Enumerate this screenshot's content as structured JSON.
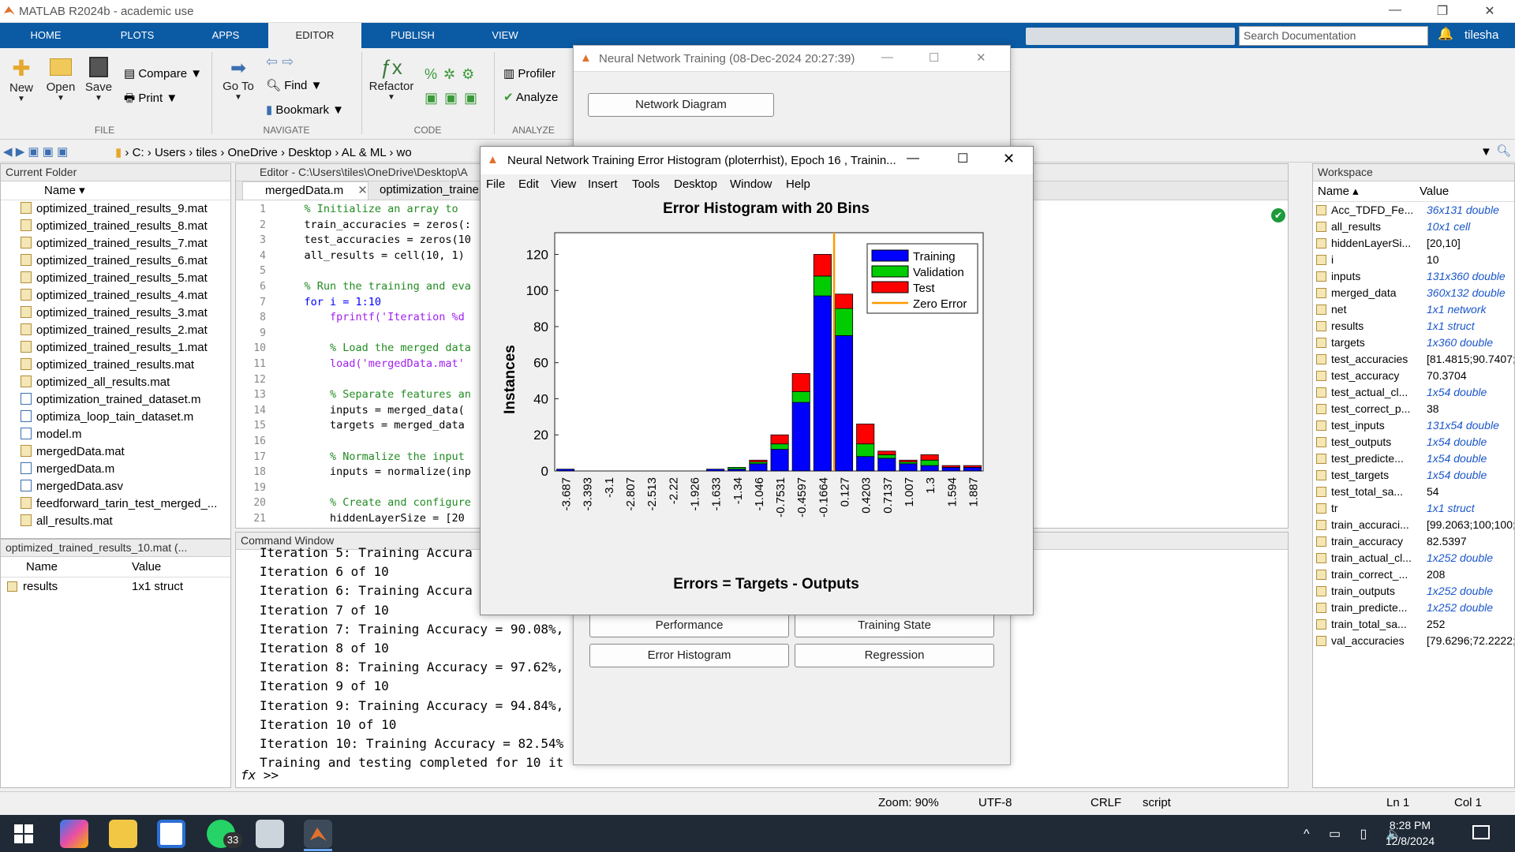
{
  "window_title": "MATLAB R2024b - academic use",
  "ribbon_tabs": [
    "HOME",
    "PLOTS",
    "APPS",
    "EDITOR",
    "PUBLISH",
    "VIEW"
  ],
  "search_placeholder": "Search Documentation",
  "user": "tilesha",
  "ribbon": {
    "new": "New",
    "open": "Open",
    "save": "Save",
    "compare": "Compare",
    "print": "Print",
    "goto": "Go To",
    "find": "Find",
    "bookmark": "Bookmark",
    "refactor": "Refactor",
    "profiler": "Profiler",
    "analyze": "Analyze",
    "groups": [
      "FILE",
      "NAVIGATE",
      "CODE",
      "ANALYZE"
    ]
  },
  "address": [
    "C:",
    "Users",
    "tiles",
    "OneDrive",
    "Desktop",
    "AL & ML",
    "wo"
  ],
  "current_folder": {
    "title": "Current Folder",
    "col_name": "Name",
    "files": [
      "optimized_trained_results_9.mat",
      "optimized_trained_results_8.mat",
      "optimized_trained_results_7.mat",
      "optimized_trained_results_6.mat",
      "optimized_trained_results_5.mat",
      "optimized_trained_results_4.mat",
      "optimized_trained_results_3.mat",
      "optimized_trained_results_2.mat",
      "optimized_trained_results_1.mat",
      "optimized_trained_results.mat",
      "optimized_all_results.mat",
      "optimization_trained_dataset.m",
      "optimiza_loop_tain_dataset.m",
      "model.m",
      "mergedData.mat",
      "mergedData.m",
      "mergedData.asv",
      "feedforward_tarin_test_merged_...",
      "all_results.mat"
    ],
    "details_title": "optimized_trained_results_10.mat  (...",
    "details_cols": [
      "Name",
      "Value"
    ],
    "details_rows": [
      [
        "results",
        "1x1 struct"
      ]
    ]
  },
  "editor": {
    "title": "Editor - C:\\Users\\tiles\\OneDrive\\Desktop\\A",
    "tabs": [
      "mergedData.m",
      "optimization_traine"
    ],
    "lines": [
      {
        "n": "1",
        "t": "    % Initialize an array to",
        "c": "cmt"
      },
      {
        "n": "2",
        "t": "    train_accuracies = zeros(:",
        "c": ""
      },
      {
        "n": "3",
        "t": "    test_accuracies = zeros(10",
        "c": ""
      },
      {
        "n": "4",
        "t": "    all_results = cell(10, 1)",
        "c": ""
      },
      {
        "n": "5",
        "t": "",
        "c": ""
      },
      {
        "n": "6",
        "t": "    % Run the training and eva",
        "c": "cmt"
      },
      {
        "n": "7",
        "t": "    for i = 1:10",
        "c": "kw"
      },
      {
        "n": "8",
        "t": "        fprintf('Iteration %d",
        "c": "str"
      },
      {
        "n": "9",
        "t": "",
        "c": ""
      },
      {
        "n": "10",
        "t": "        % Load the merged data",
        "c": "cmt"
      },
      {
        "n": "11",
        "t": "        load('mergedData.mat'",
        "c": "str"
      },
      {
        "n": "12",
        "t": "",
        "c": ""
      },
      {
        "n": "13",
        "t": "        % Separate features an",
        "c": "cmt"
      },
      {
        "n": "14",
        "t": "        inputs = merged_data(",
        "c": ""
      },
      {
        "n": "15",
        "t": "        targets = merged_data",
        "c": ""
      },
      {
        "n": "16",
        "t": "",
        "c": ""
      },
      {
        "n": "17",
        "t": "        % Normalize the input",
        "c": "cmt"
      },
      {
        "n": "18",
        "t": "        inputs = normalize(inp",
        "c": ""
      },
      {
        "n": "19",
        "t": "",
        "c": ""
      },
      {
        "n": "20",
        "t": "        % Create and configure",
        "c": "cmt"
      },
      {
        "n": "21",
        "t": "        hiddenLayerSize = [20",
        "c": ""
      }
    ]
  },
  "command_window": {
    "title": "Command Window",
    "lines": [
      "Iteration 5: Training Accura",
      "Iteration 6 of 10",
      "Iteration 6: Training Accura",
      "Iteration 7 of 10",
      "Iteration 7: Training Accuracy = 90.08%,",
      "Iteration 8 of 10",
      "Iteration 8: Training Accuracy = 97.62%,",
      "Iteration 9 of 10",
      "Iteration 9: Training Accuracy = 94.84%,",
      "Iteration 10 of 10",
      "Iteration 10: Training Accuracy = 82.54%",
      "Training and testing completed for 10 it"
    ],
    "prompt": ">>",
    "fx": "fx"
  },
  "workspace": {
    "title": "Workspace",
    "cols": [
      "Name",
      "Value"
    ],
    "rows": [
      [
        "Acc_TDFD_Fe...",
        "36x131 double",
        true
      ],
      [
        "all_results",
        "10x1 cell",
        true
      ],
      [
        "hiddenLayerSi...",
        "[20,10]",
        false
      ],
      [
        "i",
        "10",
        false
      ],
      [
        "inputs",
        "131x360 double",
        true
      ],
      [
        "merged_data",
        "360x132 double",
        true
      ],
      [
        "net",
        "1x1 network",
        true
      ],
      [
        "results",
        "1x1 struct",
        true
      ],
      [
        "targets",
        "1x360 double",
        true
      ],
      [
        "test_accuracies",
        "[81.4815;90.7407;...",
        false
      ],
      [
        "test_accuracy",
        "70.3704",
        false
      ],
      [
        "test_actual_cl...",
        "1x54 double",
        true
      ],
      [
        "test_correct_p...",
        "38",
        false
      ],
      [
        "test_inputs",
        "131x54 double",
        true
      ],
      [
        "test_outputs",
        "1x54 double",
        true
      ],
      [
        "test_predicte...",
        "1x54 double",
        true
      ],
      [
        "test_targets",
        "1x54 double",
        true
      ],
      [
        "test_total_sa...",
        "54",
        false
      ],
      [
        "tr",
        "1x1 struct",
        true
      ],
      [
        "train_accuraci...",
        "[99.2063;100;100;...",
        false
      ],
      [
        "train_accuracy",
        "82.5397",
        false
      ],
      [
        "train_actual_cl...",
        "1x252 double",
        true
      ],
      [
        "train_correct_...",
        "208",
        false
      ],
      [
        "train_outputs",
        "1x252 double",
        true
      ],
      [
        "train_predicte...",
        "1x252 double",
        true
      ],
      [
        "train_total_sa...",
        "252",
        false
      ],
      [
        "val_accuracies",
        "[79.6296;72.2222;...",
        false
      ]
    ]
  },
  "nn_training": {
    "title": "Neural Network Training (08-Dec-2024 20:27:39)",
    "network_diagram": "Network Diagram",
    "buttons": [
      "Performance",
      "Training State",
      "Error Histogram",
      "Regression"
    ]
  },
  "histogram_window": {
    "title": "Neural Network Training Error Histogram (ploterrhist), Epoch 16 , Trainin...",
    "menu": [
      "File",
      "Edit",
      "View",
      "Insert",
      "Tools",
      "Desktop",
      "Window",
      "Help"
    ]
  },
  "chart_data": {
    "type": "bar",
    "title": "Error Histogram with 20 Bins",
    "xlabel": "Errors = Targets - Outputs",
    "ylabel": "Instances",
    "ylim": [
      0,
      132
    ],
    "yticks": [
      0,
      20,
      40,
      60,
      80,
      100,
      120
    ],
    "categories": [
      "-3.687",
      "-3.393",
      "-3.1",
      "-2.807",
      "-2.513",
      "-2.22",
      "-1.926",
      "-1.633",
      "-1.34",
      "-1.046",
      "-0.7531",
      "-0.4597",
      "-0.1664",
      "0.127",
      "0.4203",
      "0.7137",
      "1.007",
      "1.3",
      "1.594",
      "1.887"
    ],
    "stacked": true,
    "series": [
      {
        "name": "Training",
        "color": "#0000ff",
        "values": [
          1,
          0,
          0,
          0,
          0,
          0,
          0,
          1,
          1,
          4,
          12,
          38,
          97,
          75,
          8,
          7,
          4,
          3,
          2,
          2
        ]
      },
      {
        "name": "Validation",
        "color": "#00cc00",
        "values": [
          0,
          0,
          0,
          0,
          0,
          0,
          0,
          0,
          1,
          1,
          3,
          6,
          11,
          15,
          7,
          2,
          1,
          3,
          0,
          0
        ]
      },
      {
        "name": "Test",
        "color": "#ff0000",
        "values": [
          0,
          0,
          0,
          0,
          0,
          0,
          0,
          0,
          0,
          1,
          5,
          10,
          12,
          8,
          11,
          2,
          1,
          3,
          1,
          1
        ]
      }
    ],
    "zero_error": {
      "name": "Zero Error",
      "color": "#ff9900",
      "value": 0
    },
    "legend": "top-right"
  },
  "status": {
    "zoom": "Zoom: 90%",
    "encoding": "UTF-8",
    "eol": "CRLF",
    "type": "script",
    "ln": "Ln  1",
    "col": "Col  1"
  },
  "taskbar": {
    "time": "8:28 PM",
    "date": "12/8/2024",
    "badge": "33"
  }
}
